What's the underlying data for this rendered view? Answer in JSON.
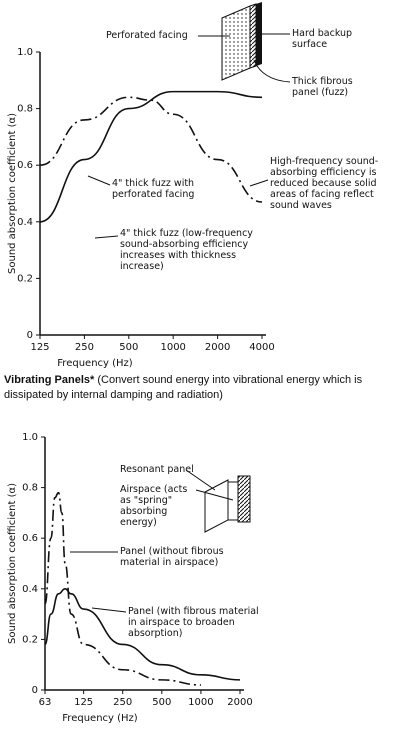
{
  "chart_data": [
    {
      "type": "line",
      "ylabel": "Sound absorption coefficient (α)",
      "xlabel": "Frequency (Hz)",
      "xlim": [
        125,
        4000
      ],
      "xticks": [
        125,
        250,
        500,
        1000,
        2000,
        4000
      ],
      "xscale": "log",
      "ylim": [
        0,
        1
      ],
      "yticks": [
        0,
        {
          "value": 0.2,
          "label": "0.2"
        },
        {
          "value": 0.4,
          "label": "0.4"
        },
        {
          "value": 0.6,
          "label": "0.6"
        },
        {
          "value": 0.8,
          "label": "0.8"
        },
        {
          "value": 1,
          "label": "1.0"
        }
      ],
      "series": [
        {
          "name": "4\" thick fuzz with perforated facing",
          "color": "#111",
          "style": "dash-dot",
          "x": [
            125,
            250,
            500,
            700,
            1000,
            2000,
            4000
          ],
          "values": [
            0.6,
            0.76,
            0.84,
            0.83,
            0.78,
            0.62,
            0.47
          ]
        },
        {
          "name": "4\" thick fuzz (low-frequency sound-absorbing efficiency increases with thickness increase)",
          "color": "#111",
          "style": "solid",
          "x": [
            125,
            250,
            500,
            1000,
            2000,
            4000
          ],
          "values": [
            0.4,
            0.62,
            0.8,
            0.86,
            0.86,
            0.84
          ]
        }
      ],
      "annotations": [
        "High-frequency sound-absorbing efficiency is reduced because solid areas of facing reflect sound waves"
      ],
      "diagram_labels": [
        "Perforated facing",
        "Hard backup surface",
        "Thick fibrous panel (fuzz)"
      ]
    },
    {
      "type": "line",
      "ylabel": "Sound absorption coefficient (α)",
      "xlabel": "Frequency (Hz)",
      "xlim": [
        63,
        2000
      ],
      "xticks": [
        63,
        125,
        250,
        500,
        1000,
        2000
      ],
      "xscale": "log",
      "ylim": [
        0,
        1
      ],
      "yticks": [
        0,
        {
          "value": 0.2,
          "label": "0.2"
        },
        {
          "value": 0.4,
          "label": "0.4"
        },
        {
          "value": 0.6,
          "label": "0.6"
        },
        {
          "value": 0.8,
          "label": "0.8"
        },
        {
          "value": 1,
          "label": "1.0"
        }
      ],
      "series": [
        {
          "name": "Panel (without fibrous material in airspace)",
          "color": "#111",
          "style": "dash-dot",
          "x": [
            63,
            70,
            75,
            80,
            85,
            90,
            100,
            125,
            250,
            500,
            1000
          ],
          "values": [
            0.34,
            0.6,
            0.76,
            0.78,
            0.7,
            0.5,
            0.3,
            0.18,
            0.08,
            0.04,
            0.02
          ]
        },
        {
          "name": "Panel (with fibrous material in airspace to broaden absorption)",
          "color": "#111",
          "style": "solid",
          "x": [
            63,
            70,
            80,
            90,
            100,
            125,
            250,
            500,
            1000,
            2000
          ],
          "values": [
            0.18,
            0.3,
            0.38,
            0.4,
            0.38,
            0.32,
            0.18,
            0.1,
            0.06,
            0.04
          ]
        }
      ],
      "diagram_labels": [
        "Resonant panel",
        "Airspace (acts as \"spring\" absorbing energy)"
      ]
    }
  ],
  "section": {
    "title": "Vibrating Panels*",
    "description": "(Convert sound energy into vibrational energy which is dissipated by internal damping and radiation)"
  }
}
